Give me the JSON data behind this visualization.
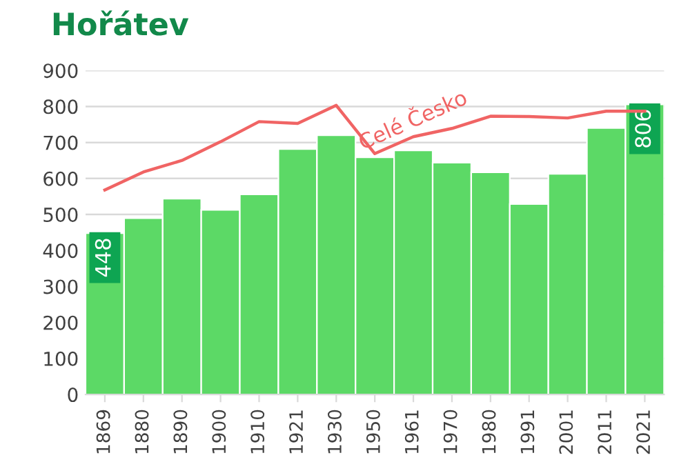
{
  "chart_data": {
    "type": "bar",
    "title": "Hořátev",
    "categories": [
      "1869",
      "1880",
      "1890",
      "1900",
      "1910",
      "1921",
      "1930",
      "1950",
      "1961",
      "1970",
      "1980",
      "1991",
      "2001",
      "2011",
      "2021"
    ],
    "series": [
      {
        "color": "#5cd966",
        "values": [
          448,
          490,
          544,
          513,
          556,
          682,
          720,
          659,
          678,
          644,
          617,
          529,
          613,
          740,
          806
        ],
        "value_labels": [
          "448",
          null,
          null,
          null,
          null,
          null,
          null,
          null,
          null,
          null,
          null,
          null,
          null,
          null,
          "806"
        ]
      },
      {
        "type": "line",
        "name": "Celé Česko",
        "color": "#f06464",
        "values": [
          568,
          618,
          650,
          702,
          758,
          753,
          803,
          669,
          716,
          739,
          773,
          772,
          768,
          787,
          787
        ]
      }
    ],
    "ylim": [
      0,
      900
    ],
    "yticks": [
      0,
      100,
      200,
      300,
      400,
      500,
      600,
      700,
      800,
      900
    ],
    "grid": "y",
    "legend": false
  }
}
